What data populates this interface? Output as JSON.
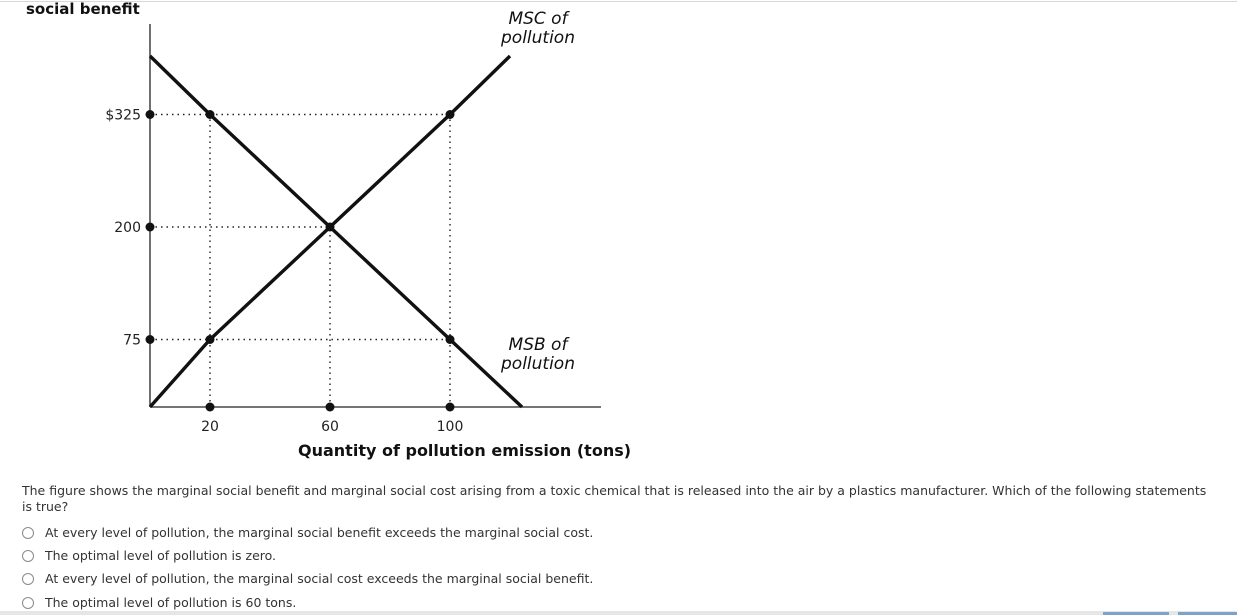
{
  "figure": {
    "ylabel": "social benefit",
    "xlabel": "Quantity of pollution emission (tons)",
    "msc_label_line1": "MSC of",
    "msc_label_line2": "pollution",
    "msb_label_line1": "MSB of",
    "msb_label_line2": "pollution"
  },
  "chart_data": {
    "type": "line",
    "ylabel": "social benefit",
    "xlabel": "Quantity of pollution emission (tons)",
    "x_ticks": [
      20,
      60,
      100
    ],
    "y_ticks": [
      {
        "value": 325,
        "label": "$325"
      },
      {
        "value": 200,
        "label": "200"
      },
      {
        "value": 75,
        "label": "75"
      }
    ],
    "series": [
      {
        "name": "MSC of pollution",
        "x": [
          0,
          20,
          60,
          100,
          120
        ],
        "y": [
          0,
          75,
          200,
          325,
          390
        ]
      },
      {
        "name": "MSB of pollution",
        "x": [
          0,
          20,
          60,
          100,
          124
        ],
        "y": [
          390,
          325,
          200,
          75,
          0
        ]
      }
    ],
    "highlight_points": [
      {
        "x": 20,
        "y": 325
      },
      {
        "x": 60,
        "y": 200
      },
      {
        "x": 100,
        "y": 325
      },
      {
        "x": 20,
        "y": 75
      },
      {
        "x": 100,
        "y": 75
      }
    ],
    "grid": false
  },
  "question": {
    "text": "The figure shows the marginal social benefit and marginal social cost arising from a toxic chemical that is released into the air by a plastics manufacturer. Which of the following statements is true?",
    "options": [
      {
        "label": "At every level of pollution, the marginal social benefit exceeds the marginal social cost."
      },
      {
        "label": "The optimal level of pollution is zero."
      },
      {
        "label": "At every level of pollution, the marginal social cost exceeds the marginal social benefit."
      },
      {
        "label": "The optimal level of pollution is 60 tons."
      }
    ]
  }
}
